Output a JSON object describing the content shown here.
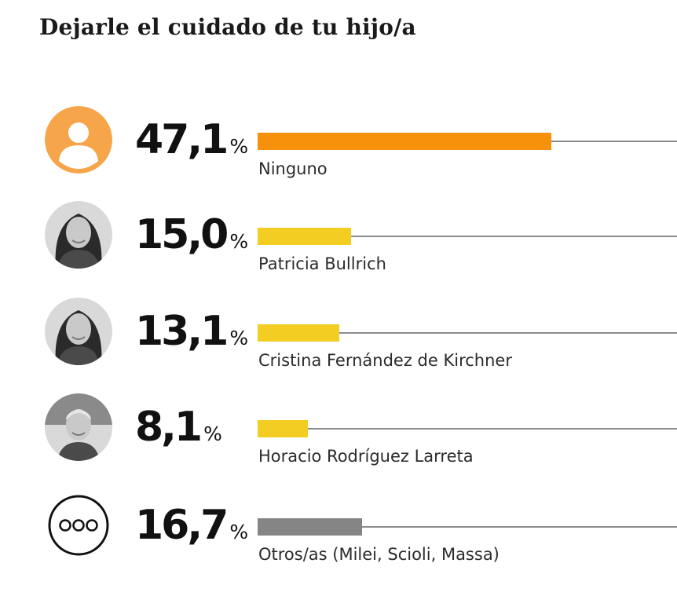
{
  "title": "Dejarle el cuidado de tu hijo/a",
  "chart_data": {
    "type": "bar",
    "title": "Dejarle el cuidado de tu hijo/a",
    "unit": "%",
    "max_value": 100,
    "categories": [
      "Ninguno",
      "Patricia Bullrich",
      "Cristina Fernández de Kirchner",
      "Horacio Rodríguez Larreta",
      "Otros/as (Milei, Scioli, Massa)"
    ],
    "values": [
      47.1,
      15.0,
      13.1,
      8.1,
      16.7
    ],
    "value_labels": [
      "47,1",
      "15,0",
      "13,1",
      "8,1",
      "16,7"
    ],
    "bar_colors": [
      "#f7900a",
      "#f3cd22",
      "#f3cd22",
      "#f3cd22",
      "#858585"
    ],
    "icons": [
      "person-placeholder-icon",
      "photo-patricia-bullrich",
      "photo-cristina-fernandez",
      "photo-horacio-rodriguez-larreta",
      "ellipsis-icon"
    ],
    "track_color": "#8c8c8c"
  }
}
